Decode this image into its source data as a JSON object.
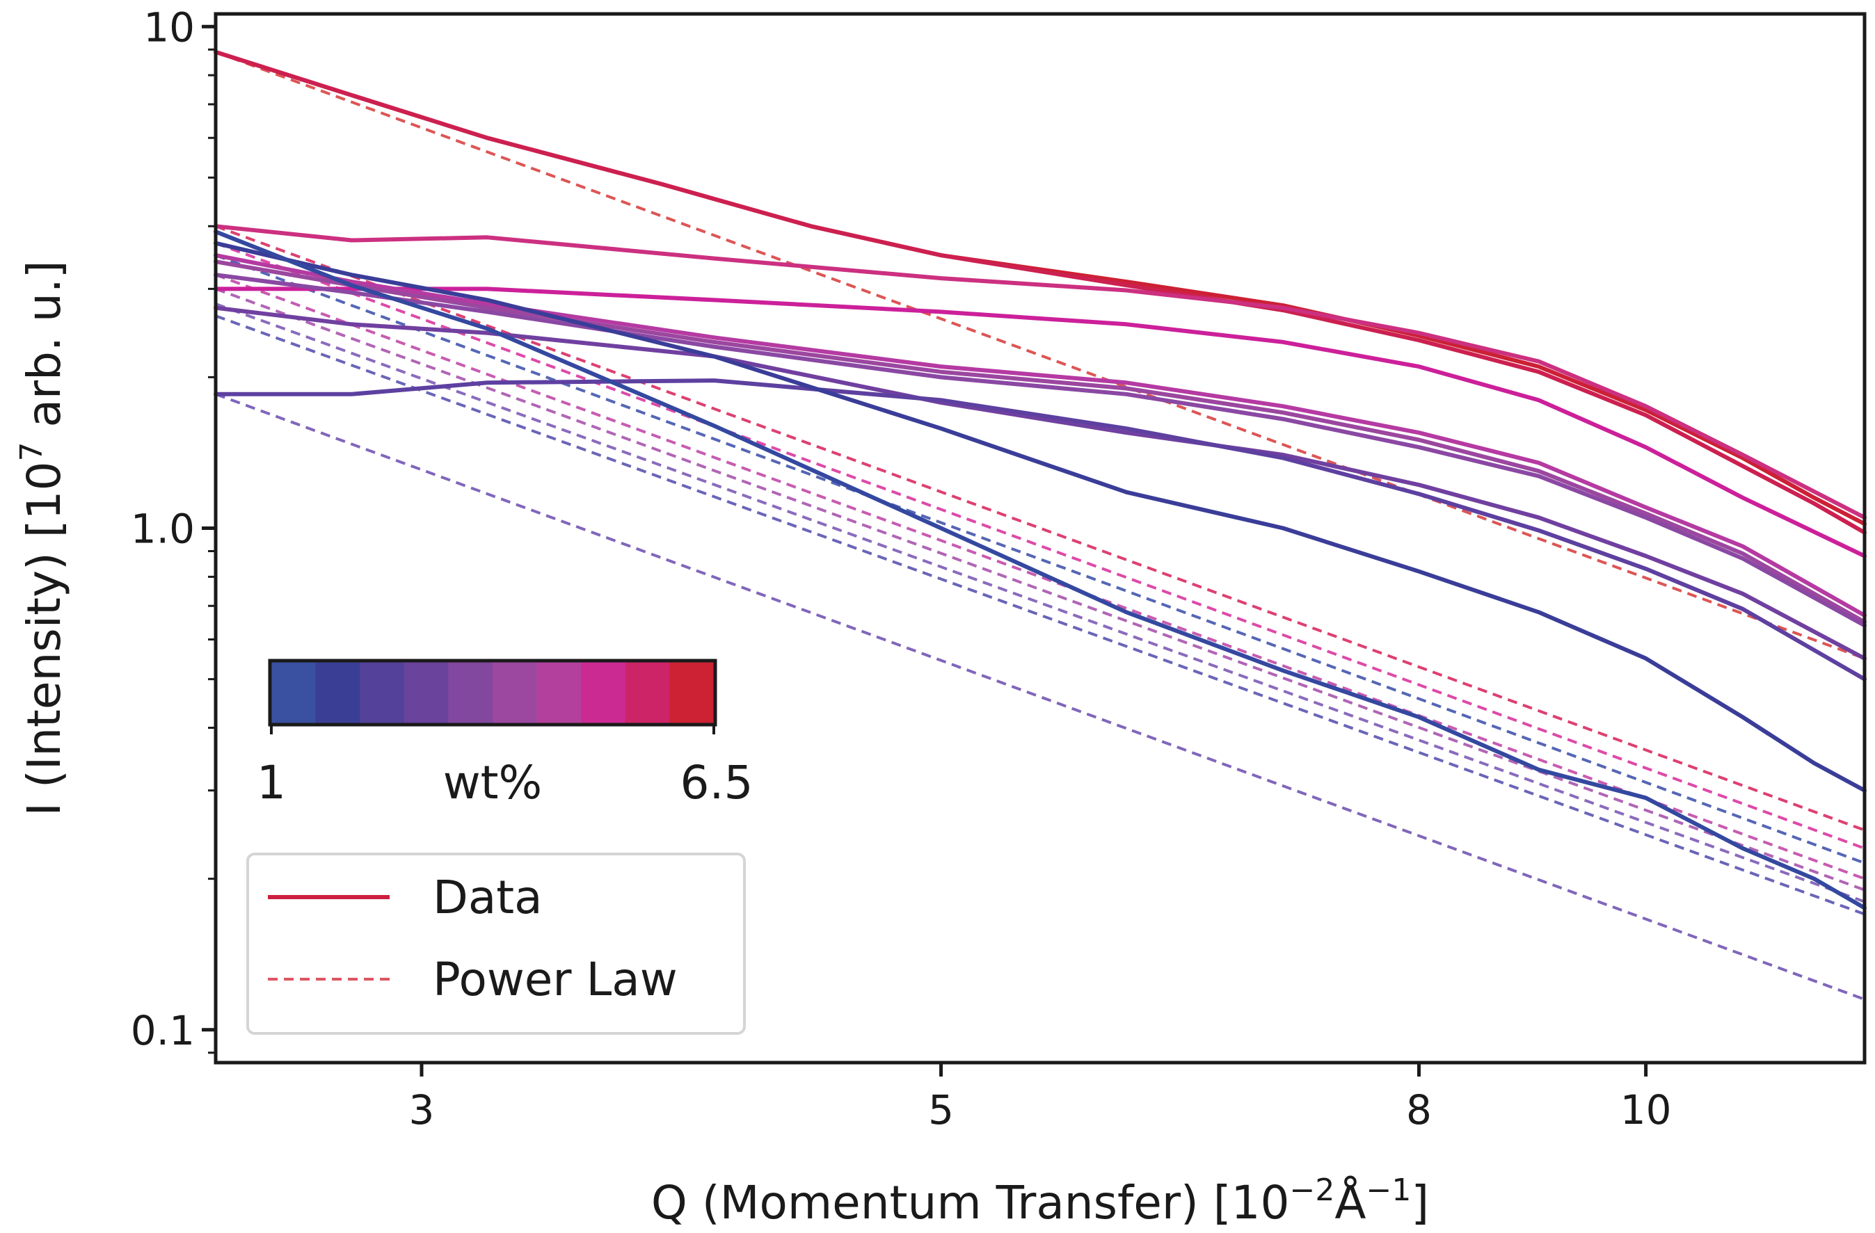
{
  "chart_data": {
    "type": "line",
    "scale": {
      "x": "log",
      "y": "log"
    },
    "xlim": [
      2.45,
      12.4
    ],
    "ylim": [
      0.086,
      10.6
    ],
    "xticks": [
      {
        "value": 3,
        "label": "3"
      },
      {
        "value": 5,
        "label": "5"
      },
      {
        "value": 8,
        "label": "8"
      },
      {
        "value": 10,
        "label": "10"
      }
    ],
    "yticks": [
      {
        "value": 10,
        "label": "10"
      },
      {
        "value": 1,
        "label": "1.0"
      },
      {
        "value": 0.1,
        "label": "0.1"
      }
    ],
    "xlabel": "Q (Momentum Transfer) [10",
    "xlabel_sup": "−2",
    "xlabel_unit": "Å",
    "xlabel_unit_sup": "−1",
    "xlabel_end": "]",
    "ylabel": "I (Intensity) [10",
    "ylabel_sup": "7",
    "ylabel_end": " arb. u.]",
    "colorbar": {
      "min_label": "1",
      "mid_label": "wt%",
      "max_label": "6.5",
      "colors": [
        "#3a50a0",
        "#3a3f95",
        "#54419a",
        "#6a439c",
        "#82479e",
        "#9c48a0",
        "#b3409c",
        "#cc2a93",
        "#cc2466",
        "#cc2233"
      ]
    },
    "legend": [
      {
        "label": "Data",
        "style": "solid",
        "color": "#cc2040"
      },
      {
        "label": "Power Law",
        "style": "dashed",
        "color": "#dd5560"
      }
    ],
    "series": [
      {
        "name": "6.5 wt% data",
        "color": "#cc2035",
        "style": "solid",
        "x": [
          2.45,
          2.8,
          3.2,
          3.8,
          4.4,
          5,
          6,
          7,
          8,
          9,
          10,
          11,
          11.8,
          12.4
        ],
        "y": [
          8.9,
          7.3,
          6.0,
          4.85,
          4.0,
          3.5,
          3.1,
          2.78,
          2.42,
          2.1,
          1.72,
          1.38,
          1.15,
          1.02
        ]
      },
      {
        "name": "6.0 wt% data",
        "color": "#cc2050",
        "style": "solid",
        "x": [
          2.45,
          2.8,
          3.2,
          3.8,
          4.4,
          5,
          6,
          7,
          8,
          9,
          10,
          11,
          11.8,
          12.4
        ],
        "y": [
          8.9,
          7.3,
          6.0,
          4.85,
          4.0,
          3.5,
          3.05,
          2.72,
          2.37,
          2.05,
          1.68,
          1.33,
          1.12,
          0.98
        ]
      },
      {
        "name": "5.5 wt% data",
        "color": "#cc3080",
        "style": "solid",
        "x": [
          2.45,
          2.8,
          3.2,
          4,
          5,
          6,
          7,
          8,
          9,
          10,
          11,
          12.4
        ],
        "y": [
          4.0,
          3.75,
          3.8,
          3.45,
          3.15,
          2.98,
          2.75,
          2.45,
          2.15,
          1.75,
          1.4,
          1.05
        ]
      },
      {
        "name": "5.0 wt% data",
        "color": "#cc209a",
        "style": "solid",
        "x": [
          2.45,
          2.8,
          3.2,
          4,
          5,
          6,
          7,
          8,
          9,
          10,
          11,
          12.4
        ],
        "y": [
          3.0,
          3.0,
          3.0,
          2.85,
          2.7,
          2.55,
          2.35,
          2.1,
          1.8,
          1.45,
          1.15,
          0.88
        ]
      },
      {
        "name": "4.5 wt% data",
        "color": "#b53aa2",
        "style": "solid",
        "x": [
          2.45,
          2.8,
          3.2,
          4,
          5,
          6,
          7,
          8,
          9,
          10,
          11,
          12.4
        ],
        "y": [
          3.5,
          3.1,
          2.8,
          2.4,
          2.1,
          1.95,
          1.75,
          1.55,
          1.35,
          1.1,
          0.92,
          0.67
        ]
      },
      {
        "name": "4.0 wt% data",
        "color": "#9b479f",
        "style": "solid",
        "x": [
          2.45,
          2.8,
          3.2,
          4,
          5,
          6,
          7,
          8,
          9,
          10,
          11,
          12.4
        ],
        "y": [
          3.4,
          3.05,
          2.75,
          2.35,
          2.05,
          1.9,
          1.7,
          1.5,
          1.3,
          1.07,
          0.89,
          0.65
        ]
      },
      {
        "name": "3.5 wt% data",
        "color": "#8a48a3",
        "style": "solid",
        "x": [
          2.45,
          2.8,
          3.2,
          4,
          5,
          6,
          7,
          8,
          9,
          10,
          11,
          12.4
        ],
        "y": [
          3.2,
          2.95,
          2.7,
          2.3,
          2.0,
          1.85,
          1.65,
          1.45,
          1.27,
          1.05,
          0.87,
          0.64
        ]
      },
      {
        "name": "3.0 wt% data",
        "color": "#7040a0",
        "style": "solid",
        "x": [
          2.45,
          2.8,
          3.2,
          4,
          5,
          6,
          7,
          8,
          9,
          10,
          11,
          12.4
        ],
        "y": [
          2.75,
          2.55,
          2.45,
          2.2,
          1.78,
          1.55,
          1.4,
          1.22,
          1.05,
          0.88,
          0.74,
          0.55
        ]
      },
      {
        "name": "2.5 wt% data",
        "color": "#5d40a0",
        "style": "solid",
        "x": [
          2.45,
          2.8,
          3.2,
          4,
          5,
          6,
          7,
          8,
          9,
          10,
          11,
          12.4
        ],
        "y": [
          1.85,
          1.85,
          1.95,
          1.97,
          1.8,
          1.58,
          1.38,
          1.17,
          0.99,
          0.83,
          0.69,
          0.5
        ]
      },
      {
        "name": "2.0 wt% data",
        "color": "#3a3d98",
        "style": "solid",
        "x": [
          2.45,
          2.8,
          3.2,
          4,
          5,
          6,
          7,
          8,
          9,
          10,
          11,
          11.8,
          12.4
        ],
        "y": [
          3.7,
          3.2,
          2.85,
          2.2,
          1.58,
          1.18,
          1.0,
          0.82,
          0.68,
          0.55,
          0.42,
          0.34,
          0.3
        ]
      },
      {
        "name": "1.0 wt% data",
        "color": "#3448a0",
        "style": "solid",
        "x": [
          2.45,
          2.8,
          3.2,
          4,
          5,
          6,
          7,
          8,
          9,
          10,
          11,
          11.8,
          12.4
        ],
        "y": [
          3.9,
          3.05,
          2.5,
          1.6,
          1.0,
          0.68,
          0.52,
          0.42,
          0.33,
          0.29,
          0.23,
          0.2,
          0.175
        ]
      },
      {
        "name": "6.5 wt% power law",
        "color": "#dd5555",
        "style": "dashed",
        "x": [
          2.45,
          12.4
        ],
        "y": [
          8.9,
          0.55
        ]
      },
      {
        "name": "5.5 wt% power law",
        "color": "#dd4070",
        "style": "dashed",
        "x": [
          2.45,
          12.4
        ],
        "y": [
          4.0,
          0.25
        ]
      },
      {
        "name": "5.0 wt% power law",
        "color": "#dd4aa8",
        "style": "dashed",
        "x": [
          2.45,
          12.4
        ],
        "y": [
          3.7,
          0.23
        ]
      },
      {
        "name": "4.5 wt% power law",
        "color": "#c85bb0",
        "style": "dashed",
        "x": [
          2.45,
          12.4
        ],
        "y": [
          3.2,
          0.2
        ]
      },
      {
        "name": "4.0 wt% power law",
        "color": "#b065b5",
        "style": "dashed",
        "x": [
          2.45,
          12.4
        ],
        "y": [
          3.0,
          0.19
        ]
      },
      {
        "name": "3.0 wt% power law",
        "color": "#8a6bbd",
        "style": "dashed",
        "x": [
          2.45,
          12.4
        ],
        "y": [
          2.8,
          0.18
        ]
      },
      {
        "name": "1.0 wt% power law",
        "color": "#5566b5",
        "style": "dashed",
        "x": [
          2.45,
          12.4
        ],
        "y": [
          3.5,
          0.215
        ]
      },
      {
        "name": "2.0 wt% power law",
        "color": "#6a65b8",
        "style": "dashed",
        "x": [
          2.45,
          12.4
        ],
        "y": [
          2.65,
          0.17
        ]
      },
      {
        "name": "2.5 wt% power law",
        "color": "#8066bb",
        "style": "dashed",
        "x": [
          2.45,
          12.4
        ],
        "y": [
          1.85,
          0.115
        ]
      }
    ]
  }
}
